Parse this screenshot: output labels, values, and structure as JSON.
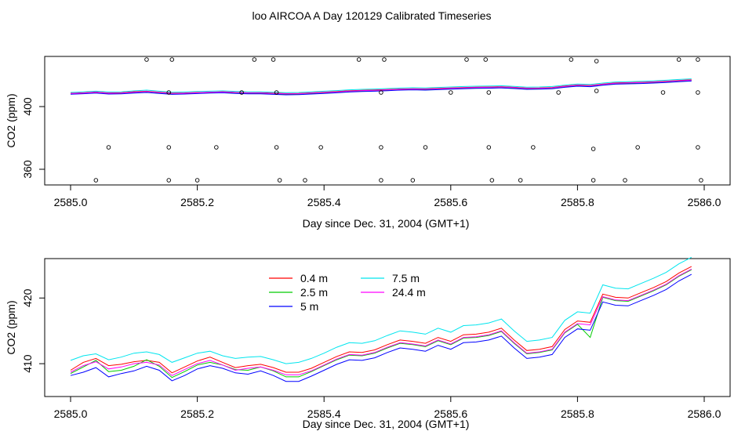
{
  "title": "loo AIRCOA A  Day 120129  Calibrated Timeseries",
  "chart_data": [
    {
      "type": "scatter",
      "xlabel": "Day since Dec. 31, 2004 (GMT+1)",
      "ylabel": "CO2 (ppm)",
      "xlim": [
        2585.0,
        2586.0
      ],
      "ylim": [
        350,
        432
      ],
      "xticks": [
        "2585.0",
        "2585.2",
        "2585.4",
        "2585.6",
        "2585.8",
        "2586.0"
      ],
      "yticks": [
        "360",
        "400"
      ],
      "series_colors": [
        "#ff0000",
        "#00cc00",
        "#0000ff",
        "#00e5ee",
        "#ff00ff"
      ],
      "x": [
        2585.0,
        2585.02,
        2585.04,
        2585.06,
        2585.08,
        2585.1,
        2585.12,
        2585.14,
        2585.16,
        2585.18,
        2585.2,
        2585.22,
        2585.24,
        2585.26,
        2585.28,
        2585.3,
        2585.32,
        2585.34,
        2585.36,
        2585.38,
        2585.4,
        2585.42,
        2585.44,
        2585.46,
        2585.48,
        2585.5,
        2585.52,
        2585.54,
        2585.56,
        2585.58,
        2585.6,
        2585.62,
        2585.64,
        2585.66,
        2585.68,
        2585.7,
        2585.72,
        2585.74,
        2585.76,
        2585.78,
        2585.8,
        2585.82,
        2585.84,
        2585.86,
        2585.88,
        2585.9,
        2585.92,
        2585.94,
        2585.96,
        2585.98
      ],
      "series": [
        {
          "values": [
            408.5,
            408.8,
            409.3,
            408.7,
            408.9,
            409.5,
            409.8,
            409.2,
            408.6,
            408.7,
            409.0,
            409.2,
            409.5,
            409.1,
            408.8,
            408.9,
            408.6,
            408.3,
            408.4,
            408.8,
            409.2,
            409.6,
            410.1,
            410.4,
            410.6,
            410.9,
            411.2,
            411.4,
            411.3,
            411.6,
            411.9,
            412.2,
            412.4,
            412.5,
            412.7,
            412.3,
            411.8,
            411.9,
            412.2,
            413.1,
            413.8,
            413.5,
            414.4,
            415.1,
            415.3,
            415.5,
            415.8,
            416.2,
            416.7,
            417.1
          ]
        },
        {
          "values": [
            408.2,
            408.5,
            409.0,
            408.3,
            408.5,
            409.0,
            409.5,
            408.8,
            408.2,
            408.4,
            408.7,
            409.0,
            409.1,
            408.8,
            408.5,
            408.5,
            408.2,
            407.9,
            408.0,
            408.4,
            408.8,
            409.2,
            409.7,
            410.0,
            410.2,
            410.5,
            410.9,
            411.0,
            410.9,
            411.2,
            411.5,
            411.8,
            412.0,
            412.1,
            412.3,
            411.9,
            411.4,
            411.5,
            411.8,
            412.7,
            413.4,
            413.1,
            414.0,
            414.7,
            414.9,
            415.1,
            415.4,
            415.8,
            416.3,
            416.7
          ]
        },
        {
          "values": [
            407.9,
            408.2,
            408.6,
            408.0,
            408.1,
            408.6,
            409.0,
            408.4,
            407.8,
            408.0,
            408.3,
            408.6,
            408.8,
            408.4,
            408.1,
            408.1,
            407.8,
            407.5,
            407.6,
            408.0,
            408.4,
            408.8,
            409.3,
            409.6,
            409.8,
            410.1,
            410.5,
            410.7,
            410.5,
            410.8,
            411.1,
            411.4,
            411.6,
            411.7,
            411.9,
            411.5,
            411.0,
            411.1,
            411.4,
            412.3,
            413.0,
            412.7,
            413.6,
            414.3,
            414.5,
            414.7,
            415.0,
            415.4,
            415.9,
            416.3
          ]
        },
        {
          "values": [
            409.0,
            409.4,
            409.8,
            409.3,
            409.4,
            410.0,
            410.5,
            409.8,
            409.1,
            409.3,
            409.6,
            409.8,
            410.0,
            409.7,
            409.4,
            409.4,
            409.1,
            408.9,
            409.0,
            409.4,
            409.8,
            410.2,
            410.7,
            411.0,
            411.2,
            411.5,
            411.8,
            412.0,
            411.9,
            412.2,
            412.5,
            412.8,
            413.0,
            413.1,
            413.3,
            412.9,
            412.4,
            412.5,
            412.8,
            413.7,
            414.4,
            414.1,
            415.0,
            415.7,
            415.9,
            416.1,
            416.4,
            416.8,
            417.3,
            417.7
          ]
        },
        {
          "values": [
            408.3,
            408.6,
            409.1,
            408.5,
            408.6,
            409.2,
            409.6,
            409.0,
            408.4,
            408.5,
            408.8,
            409.1,
            409.3,
            409.0,
            408.7,
            408.7,
            408.4,
            408.1,
            408.2,
            408.6,
            409.0,
            409.4,
            409.9,
            410.2,
            410.4,
            410.7,
            411.0,
            411.2,
            411.1,
            411.4,
            411.7,
            412.0,
            412.2,
            412.3,
            412.5,
            412.1,
            411.6,
            411.7,
            412.0,
            412.9,
            413.6,
            413.3,
            414.2,
            414.9,
            415.1,
            415.3,
            415.6,
            416.0,
            416.5,
            416.9
          ]
        }
      ],
      "points": [
        {
          "x": 2585.04,
          "y": 353
        },
        {
          "x": 2585.06,
          "y": 374
        },
        {
          "x": 2585.12,
          "y": 430
        },
        {
          "x": 2585.155,
          "y": 353
        },
        {
          "x": 2585.155,
          "y": 374
        },
        {
          "x": 2585.155,
          "y": 409
        },
        {
          "x": 2585.16,
          "y": 430
        },
        {
          "x": 2585.2,
          "y": 353
        },
        {
          "x": 2585.23,
          "y": 374
        },
        {
          "x": 2585.27,
          "y": 409
        },
        {
          "x": 2585.29,
          "y": 430
        },
        {
          "x": 2585.32,
          "y": 430
        },
        {
          "x": 2585.325,
          "y": 374
        },
        {
          "x": 2585.325,
          "y": 409
        },
        {
          "x": 2585.33,
          "y": 353
        },
        {
          "x": 2585.37,
          "y": 353
        },
        {
          "x": 2585.395,
          "y": 374
        },
        {
          "x": 2585.455,
          "y": 430
        },
        {
          "x": 2585.49,
          "y": 353
        },
        {
          "x": 2585.49,
          "y": 374
        },
        {
          "x": 2585.49,
          "y": 409
        },
        {
          "x": 2585.495,
          "y": 430
        },
        {
          "x": 2585.54,
          "y": 353
        },
        {
          "x": 2585.56,
          "y": 374
        },
        {
          "x": 2585.6,
          "y": 409
        },
        {
          "x": 2585.625,
          "y": 430
        },
        {
          "x": 2585.655,
          "y": 430
        },
        {
          "x": 2585.66,
          "y": 374
        },
        {
          "x": 2585.66,
          "y": 409
        },
        {
          "x": 2585.665,
          "y": 353
        },
        {
          "x": 2585.71,
          "y": 353
        },
        {
          "x": 2585.73,
          "y": 374
        },
        {
          "x": 2585.77,
          "y": 409
        },
        {
          "x": 2585.79,
          "y": 430
        },
        {
          "x": 2585.825,
          "y": 353
        },
        {
          "x": 2585.825,
          "y": 373
        },
        {
          "x": 2585.83,
          "y": 410
        },
        {
          "x": 2585.83,
          "y": 429
        },
        {
          "x": 2585.875,
          "y": 353
        },
        {
          "x": 2585.895,
          "y": 374
        },
        {
          "x": 2585.935,
          "y": 409
        },
        {
          "x": 2585.96,
          "y": 430
        },
        {
          "x": 2585.99,
          "y": 430
        },
        {
          "x": 2585.99,
          "y": 374
        },
        {
          "x": 2585.99,
          "y": 409
        },
        {
          "x": 2585.995,
          "y": 353
        }
      ]
    },
    {
      "type": "line",
      "xlabel": "Day since Dec. 31, 2004 (GMT+1)",
      "ylabel": "CO2 (ppm)",
      "xlim": [
        2585.0,
        2586.0
      ],
      "ylim": [
        405,
        426
      ],
      "xticks": [
        "2585.0",
        "2585.2",
        "2585.4",
        "2585.6",
        "2585.8",
        "2586.0"
      ],
      "yticks": [
        "410",
        "420"
      ],
      "legend": "top-center",
      "x": [
        2585.0,
        2585.02,
        2585.04,
        2585.06,
        2585.08,
        2585.1,
        2585.12,
        2585.14,
        2585.16,
        2585.18,
        2585.2,
        2585.22,
        2585.24,
        2585.26,
        2585.28,
        2585.3,
        2585.32,
        2585.34,
        2585.36,
        2585.38,
        2585.4,
        2585.42,
        2585.44,
        2585.46,
        2585.48,
        2585.5,
        2585.52,
        2585.54,
        2585.56,
        2585.58,
        2585.6,
        2585.62,
        2585.64,
        2585.66,
        2585.68,
        2585.7,
        2585.72,
        2585.74,
        2585.76,
        2585.78,
        2585.8,
        2585.82,
        2585.84,
        2585.86,
        2585.88,
        2585.9,
        2585.92,
        2585.94,
        2585.96,
        2585.98
      ],
      "series": [
        {
          "name": "0.4 m",
          "color": "#ff0000",
          "values": [
            409.0,
            410.2,
            410.8,
            409.7,
            409.9,
            410.3,
            410.5,
            410.2,
            408.6,
            409.5,
            410.4,
            411.0,
            410.2,
            409.4,
            409.7,
            409.9,
            409.4,
            408.7,
            408.7,
            409.3,
            410.2,
            411.1,
            411.8,
            411.7,
            412.1,
            412.9,
            413.6,
            413.4,
            413.1,
            414.0,
            413.4,
            414.4,
            414.5,
            414.8,
            415.4,
            413.6,
            412.0,
            412.2,
            412.6,
            415.2,
            416.5,
            416.3,
            420.6,
            420.1,
            420.0,
            420.8,
            421.6,
            422.5,
            423.8,
            424.8
          ]
        },
        {
          "name": "2.5 m",
          "color": "#00cc00",
          "values": [
            408.5,
            409.5,
            410.5,
            408.8,
            409.0,
            409.6,
            410.6,
            409.6,
            407.9,
            408.8,
            409.8,
            410.2,
            409.8,
            409.1,
            409.0,
            409.5,
            408.9,
            408.0,
            408.0,
            408.8,
            409.7,
            410.6,
            411.3,
            411.2,
            411.6,
            412.4,
            413.1,
            412.9,
            412.6,
            413.5,
            412.9,
            413.9,
            414.0,
            414.3,
            414.9,
            413.1,
            411.5,
            411.7,
            412.1,
            414.7,
            416.0,
            414.0,
            420.1,
            419.6,
            419.5,
            420.3,
            421.1,
            422.0,
            423.3,
            424.3
          ]
        },
        {
          "name": "5 m",
          "color": "#0000ff",
          "values": [
            408.2,
            408.7,
            409.4,
            408.0,
            408.5,
            408.9,
            409.6,
            409.0,
            407.4,
            408.2,
            409.2,
            409.7,
            409.3,
            408.6,
            408.4,
            408.9,
            408.2,
            407.3,
            407.3,
            408.1,
            409.0,
            409.9,
            410.6,
            410.5,
            410.9,
            411.7,
            412.4,
            412.2,
            411.9,
            412.8,
            412.2,
            413.2,
            413.3,
            413.6,
            414.2,
            412.4,
            410.8,
            411.0,
            411.4,
            414.0,
            415.3,
            415.1,
            419.4,
            418.9,
            418.8,
            419.6,
            420.4,
            421.3,
            422.6,
            423.6
          ]
        },
        {
          "name": "7.5 m",
          "color": "#00e5ee",
          "values": [
            410.5,
            411.2,
            411.5,
            410.6,
            411.0,
            411.6,
            411.8,
            411.4,
            410.2,
            410.9,
            411.6,
            411.9,
            411.2,
            410.8,
            411.0,
            411.1,
            410.6,
            410.0,
            410.2,
            410.8,
            411.6,
            412.5,
            413.2,
            413.1,
            413.5,
            414.3,
            415.0,
            414.8,
            414.5,
            415.4,
            414.8,
            415.8,
            415.9,
            416.2,
            416.8,
            415.0,
            413.4,
            413.6,
            414.0,
            416.6,
            417.9,
            417.7,
            422.0,
            421.5,
            421.4,
            422.2,
            423.0,
            423.9,
            425.2,
            426.2
          ]
        },
        {
          "name": "24.4 m",
          "color": "#ff00ff",
          "values": [
            408.7,
            409.7,
            410.3,
            409.2,
            409.5,
            410.0,
            410.2,
            409.8,
            408.2,
            409.1,
            410.0,
            410.5,
            409.8,
            409.0,
            409.3,
            409.5,
            409.0,
            408.3,
            408.3,
            408.9,
            409.8,
            410.7,
            411.4,
            411.3,
            411.7,
            412.5,
            413.2,
            413.0,
            412.7,
            413.6,
            413.0,
            414.0,
            414.1,
            414.4,
            415.0,
            413.2,
            411.6,
            411.8,
            412.2,
            414.8,
            416.1,
            415.9,
            420.2,
            419.7,
            419.6,
            420.4,
            421.2,
            422.1,
            423.4,
            424.4
          ]
        }
      ]
    }
  ]
}
